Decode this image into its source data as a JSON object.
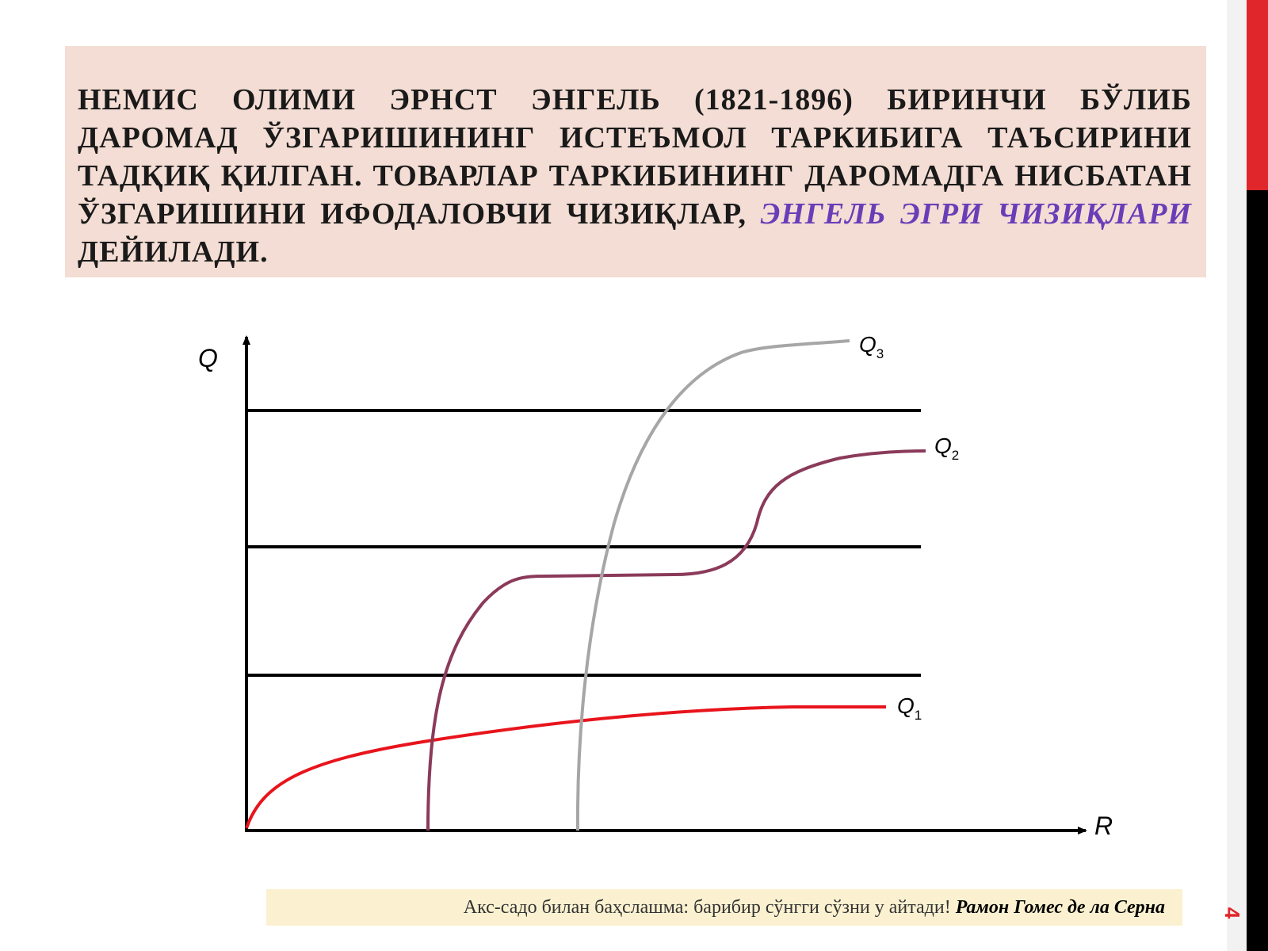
{
  "heading": {
    "text_before": "НЕМИС ОЛИМИ ЭРНСТ ЭНГЕЛЬ (1821-1896) БИРИНЧИ БЎЛИБ ДАРОМАД ЎЗГАРИШИНИНГ ИСТЕЪМОЛ ТАРКИБИГА ТАЪСИРИНИ ТАДҚИҚ ҚИЛГАН. ТОВАРЛАР ТАРКИБИНИНГ ДАРОМАДГА НИСБАТАН ЎЗГАРИШИНИ ИФОДАЛОВЧИ ЧИЗИҚЛАР,",
    "highlight": "ЭНГЕЛЬ ЭГРИ ЧИЗИҚЛАРИ",
    "text_after": "ДЕЙИЛАДИ.",
    "background": "#f4ddd4",
    "highlight_color": "#6a3db8"
  },
  "diagram": {
    "y_axis_label": "Q",
    "x_axis_label": "R",
    "curves": [
      {
        "label": "Q",
        "subscript": "1",
        "color": "#e8141c"
      },
      {
        "label": "Q",
        "subscript": "2",
        "color": "#8b3a5a"
      },
      {
        "label": "Q",
        "subscript": "3",
        "color": "#a6a6a6"
      }
    ]
  },
  "quote": {
    "text": "Акс-садо билан баҳслашма: барибир сўнгги сўзни у айтади!",
    "author": "Рамон Гомес де ла Серна"
  },
  "slide_number": "4",
  "accent_colors": {
    "red": "#e0262b",
    "black": "#000000"
  }
}
